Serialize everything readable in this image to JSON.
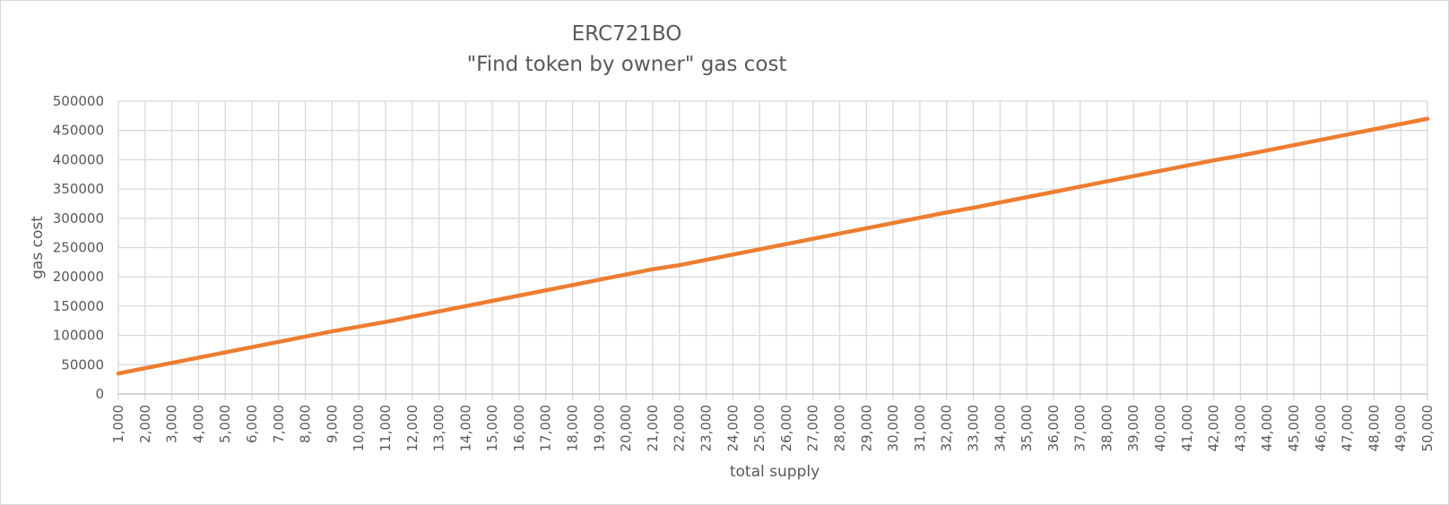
{
  "chart_data": {
    "type": "line",
    "title": "ERC721BO",
    "subtitle": "\"Find token by owner\" gas cost",
    "xlabel": "total supply",
    "ylabel": "gas cost",
    "x": [
      "1,000",
      "2,000",
      "3,000",
      "4,000",
      "5,000",
      "6,000",
      "7,000",
      "8,000",
      "9,000",
      "10,000",
      "11,000",
      "12,000",
      "13,000",
      "14,000",
      "15,000",
      "16,000",
      "17,000",
      "18,000",
      "19,000",
      "20,000",
      "21,000",
      "22,000",
      "23,000",
      "24,000",
      "25,000",
      "26,000",
      "27,000",
      "28,000",
      "29,000",
      "30,000",
      "31,000",
      "32,000",
      "33,000",
      "34,000",
      "35,000",
      "36,000",
      "37,000",
      "38,000",
      "39,000",
      "40,000",
      "41,000",
      "42,000",
      "43,000",
      "44,000",
      "45,000",
      "46,000",
      "47,000",
      "48,000",
      "49,000",
      "50,000"
    ],
    "y_ticks": [
      "0",
      "50000",
      "100000",
      "150000",
      "200000",
      "250000",
      "300000",
      "350000",
      "400000",
      "450000",
      "500000"
    ],
    "ylim": [
      0,
      500000
    ],
    "grid": true,
    "series": [
      {
        "color": "#ED7D31",
        "values": [
          35000,
          44000,
          53000,
          62000,
          71000,
          80000,
          89000,
          98000,
          107000,
          115000,
          123000,
          132000,
          141000,
          150000,
          159000,
          168000,
          177000,
          186000,
          195000,
          204000,
          213000,
          220000,
          229000,
          238000,
          247000,
          256000,
          265000,
          274000,
          283000,
          292000,
          301000,
          310000,
          318000,
          327000,
          336000,
          345000,
          354000,
          363000,
          372000,
          381000,
          390000,
          399000,
          407000,
          416000,
          425000,
          434000,
          443000,
          452000,
          461000,
          470000
        ]
      }
    ]
  }
}
